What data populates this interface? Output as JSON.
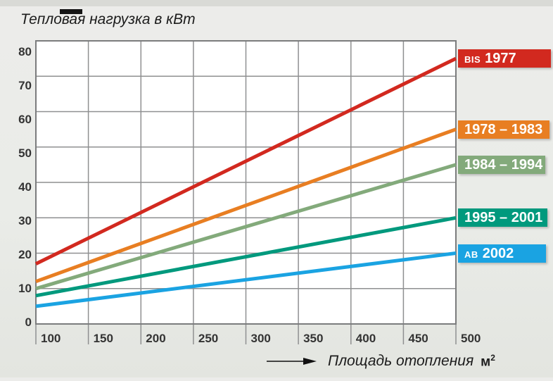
{
  "header": {
    "title": "Тепловая нагрузка в кВт"
  },
  "colors": {
    "background": "#eaece8",
    "top_strip": "#d9dad6",
    "plot_bg": "#ffffff",
    "grid": "#8f9091",
    "frame": "#7b7c7d",
    "tick_label": "#333333",
    "title_text": "#1c1c1c",
    "legend_text": "#ffffff"
  },
  "chart_data": {
    "type": "line",
    "title": "Тепловая нагрузка в кВт",
    "ylabel": "Тепловая нагрузка в кВт",
    "xlabel": "Площадь отопления м²",
    "xlabel_text": "Площадь отопления",
    "xlabel_unit_base": "м",
    "xlabel_unit_exp": "2",
    "xlim": [
      100,
      500
    ],
    "ylim": [
      0,
      80
    ],
    "x_ticks": [
      100,
      150,
      200,
      250,
      300,
      350,
      400,
      450,
      500
    ],
    "y_ticks": [
      0,
      10,
      20,
      30,
      40,
      50,
      60,
      70,
      80
    ],
    "grid": true,
    "legend_position": "right of plot, label boxes attached to line ends",
    "series": [
      {
        "name": "BIS 1977",
        "slug": "bis-1977",
        "label_prefix": "BIS",
        "label_main": "1977",
        "color": "#d2291f",
        "x": [
          100,
          500
        ],
        "values": [
          17,
          75
        ]
      },
      {
        "name": "1978 – 1983",
        "slug": "1978-1983",
        "label_prefix": "",
        "label_main": "1978 – 1983",
        "color": "#e87e22",
        "x": [
          100,
          500
        ],
        "values": [
          12,
          55
        ]
      },
      {
        "name": "1984 – 1994",
        "slug": "1984-1994",
        "label_prefix": "",
        "label_main": "1984 – 1994",
        "color": "#83aa7b",
        "x": [
          100,
          500
        ],
        "values": [
          10,
          45
        ]
      },
      {
        "name": "1995 – 2001",
        "slug": "1995-2001",
        "label_prefix": "",
        "label_main": "1995 – 2001",
        "color": "#00997d",
        "x": [
          100,
          500
        ],
        "values": [
          8,
          30
        ]
      },
      {
        "name": "AB 2002",
        "slug": "ab-2002",
        "label_prefix": "AB",
        "label_main": "2002",
        "color": "#1aa3e2",
        "x": [
          100,
          500
        ],
        "values": [
          5,
          20
        ]
      }
    ]
  }
}
